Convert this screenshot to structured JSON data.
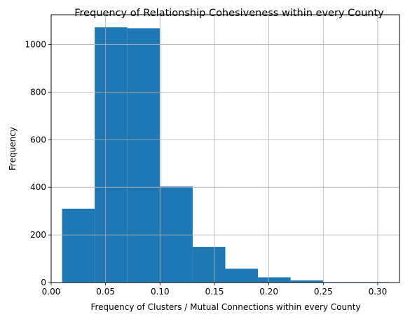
{
  "chart_data": {
    "type": "bar",
    "title": "Frequency of Relationship Cohesiveness within every County",
    "xlabel": "Frequency of Clusters / Mutual Connections within every County",
    "ylabel": "Frequency",
    "xlim": [
      -0.0,
      0.32
    ],
    "ylim": [
      0,
      1125
    ],
    "grid": true,
    "bar_color": "#1f77b4",
    "x_ticks": [
      {
        "value": 0.0,
        "label": "0.00"
      },
      {
        "value": 0.05,
        "label": "0.05"
      },
      {
        "value": 0.1,
        "label": "0.10"
      },
      {
        "value": 0.15,
        "label": "0.15"
      },
      {
        "value": 0.2,
        "label": "0.20"
      },
      {
        "value": 0.25,
        "label": "0.25"
      },
      {
        "value": 0.3,
        "label": "0.30"
      }
    ],
    "y_ticks": [
      {
        "value": 0,
        "label": "0"
      },
      {
        "value": 200,
        "label": "200"
      },
      {
        "value": 400,
        "label": "400"
      },
      {
        "value": 600,
        "label": "600"
      },
      {
        "value": 800,
        "label": "800"
      },
      {
        "value": 1000,
        "label": "1000"
      }
    ],
    "bins": [
      {
        "start": 0.01,
        "end": 0.04,
        "value": 310
      },
      {
        "start": 0.04,
        "end": 0.07,
        "value": 1072
      },
      {
        "start": 0.07,
        "end": 0.1,
        "value": 1068
      },
      {
        "start": 0.1,
        "end": 0.13,
        "value": 404
      },
      {
        "start": 0.13,
        "end": 0.16,
        "value": 150
      },
      {
        "start": 0.16,
        "end": 0.19,
        "value": 58
      },
      {
        "start": 0.19,
        "end": 0.22,
        "value": 22
      },
      {
        "start": 0.22,
        "end": 0.25,
        "value": 9
      },
      {
        "start": 0.25,
        "end": 0.28,
        "value": 2
      },
      {
        "start": 0.28,
        "end": 0.31,
        "value": 2
      }
    ]
  }
}
